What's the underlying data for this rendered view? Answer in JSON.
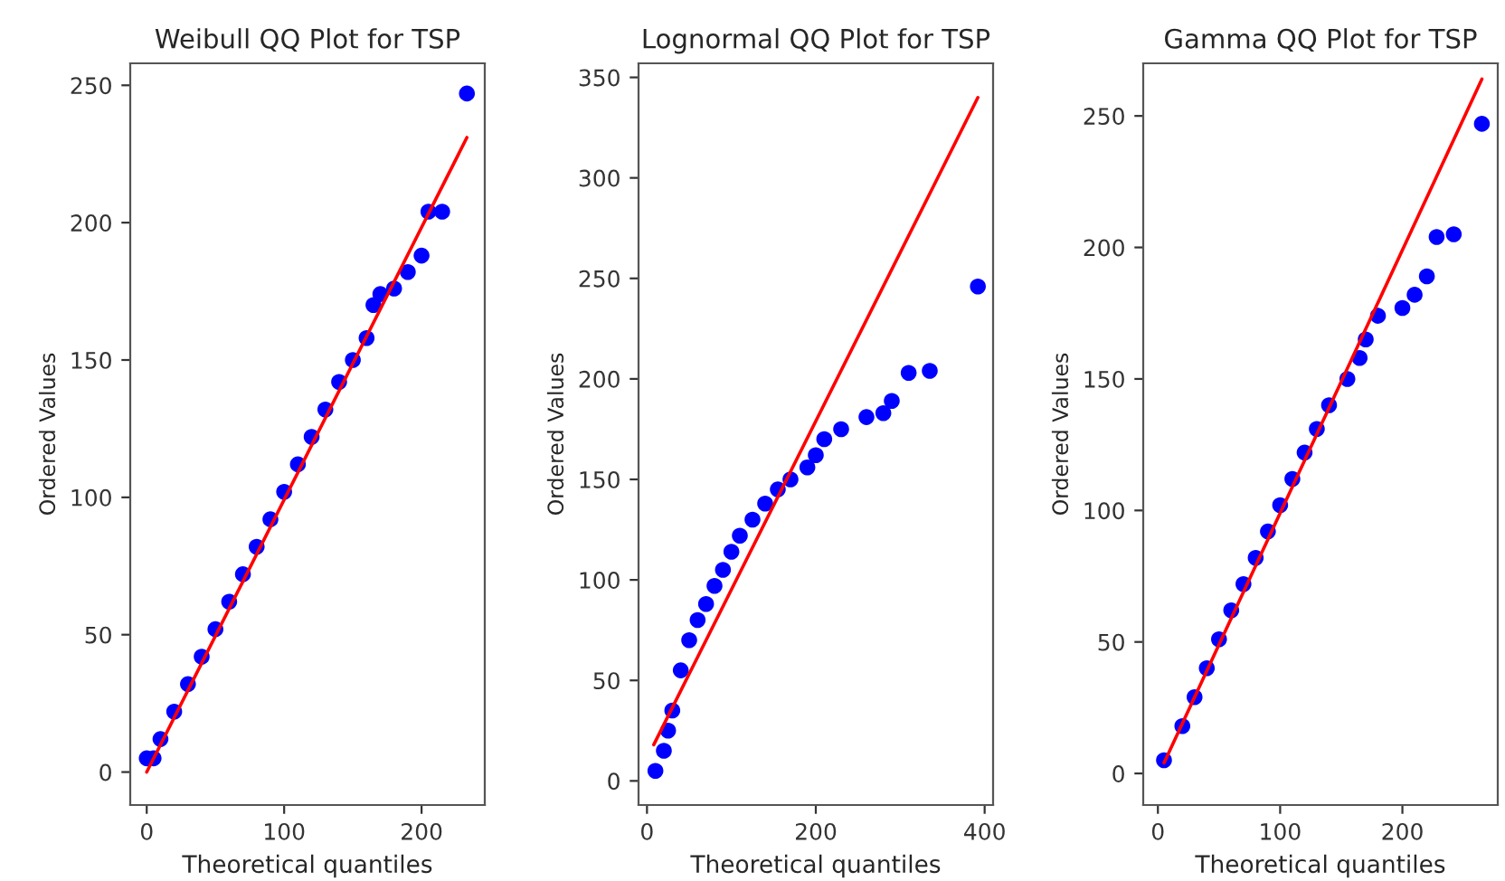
{
  "chart_data": [
    {
      "type": "scatter",
      "title": "Weibull QQ Plot for TSP",
      "xlabel": "Theoretical quantiles",
      "ylabel": "Ordered Values",
      "xlim": [
        -12,
        246
      ],
      "ylim": [
        -12,
        258
      ],
      "xticks": [
        0,
        100,
        200
      ],
      "yticks": [
        0,
        50,
        100,
        150,
        200,
        250
      ],
      "marker": "circle",
      "grid": false,
      "legend": false,
      "series": [
        {
          "color": "#0000ff",
          "x": [
            0,
            5,
            10,
            20,
            30,
            40,
            50,
            60,
            70,
            80,
            90,
            100,
            110,
            120,
            130,
            140,
            150,
            160,
            165,
            170,
            180,
            190,
            200,
            205,
            215,
            233
          ],
          "values": [
            5,
            5,
            12,
            22,
            32,
            42,
            52,
            62,
            72,
            82,
            92,
            102,
            112,
            122,
            132,
            142,
            150,
            158,
            170,
            174,
            176,
            182,
            188,
            204,
            204,
            247
          ]
        },
        {
          "type": "line",
          "color": "#ff0000",
          "marker": "none",
          "x": [
            0,
            233
          ],
          "values": [
            0,
            231
          ]
        }
      ]
    },
    {
      "type": "scatter",
      "title": "Lognormal QQ Plot for TSP",
      "xlabel": "Theoretical quantiles",
      "ylabel": "Ordered Values",
      "xlim": [
        -10,
        410
      ],
      "ylim": [
        -12,
        357
      ],
      "xticks": [
        0,
        200,
        400
      ],
      "yticks": [
        0,
        50,
        100,
        150,
        200,
        250,
        300,
        350
      ],
      "marker": "circle",
      "grid": false,
      "legend": false,
      "series": [
        {
          "color": "#0000ff",
          "x": [
            10,
            20,
            25,
            30,
            40,
            50,
            60,
            70,
            80,
            90,
            100,
            110,
            125,
            140,
            155,
            170,
            190,
            200,
            210,
            230,
            260,
            280,
            290,
            310,
            335,
            392
          ],
          "values": [
            5,
            15,
            25,
            35,
            55,
            70,
            80,
            88,
            97,
            105,
            114,
            122,
            130,
            138,
            145,
            150,
            156,
            162,
            170,
            175,
            181,
            183,
            189,
            203,
            204,
            246
          ]
        },
        {
          "type": "line",
          "color": "#ff0000",
          "marker": "none",
          "x": [
            8,
            392
          ],
          "values": [
            18,
            340
          ]
        }
      ]
    },
    {
      "type": "scatter",
      "title": "Gamma QQ Plot for TSP",
      "xlabel": "Theoretical quantiles",
      "ylabel": "Ordered Values",
      "xlim": [
        -12,
        278
      ],
      "ylim": [
        -12,
        270
      ],
      "xticks": [
        0,
        100,
        200
      ],
      "yticks": [
        0,
        50,
        100,
        150,
        200,
        250
      ],
      "marker": "circle",
      "grid": false,
      "legend": false,
      "series": [
        {
          "color": "#0000ff",
          "x": [
            5,
            20,
            30,
            40,
            50,
            60,
            70,
            80,
            90,
            100,
            110,
            120,
            130,
            140,
            155,
            165,
            170,
            180,
            200,
            210,
            220,
            228,
            242,
            265
          ],
          "values": [
            5,
            18,
            29,
            40,
            51,
            62,
            72,
            82,
            92,
            102,
            112,
            122,
            131,
            140,
            150,
            158,
            165,
            174,
            177,
            182,
            189,
            204,
            205,
            247
          ]
        },
        {
          "type": "line",
          "color": "#ff0000",
          "marker": "none",
          "x": [
            5,
            265
          ],
          "values": [
            4,
            264
          ]
        }
      ]
    }
  ]
}
